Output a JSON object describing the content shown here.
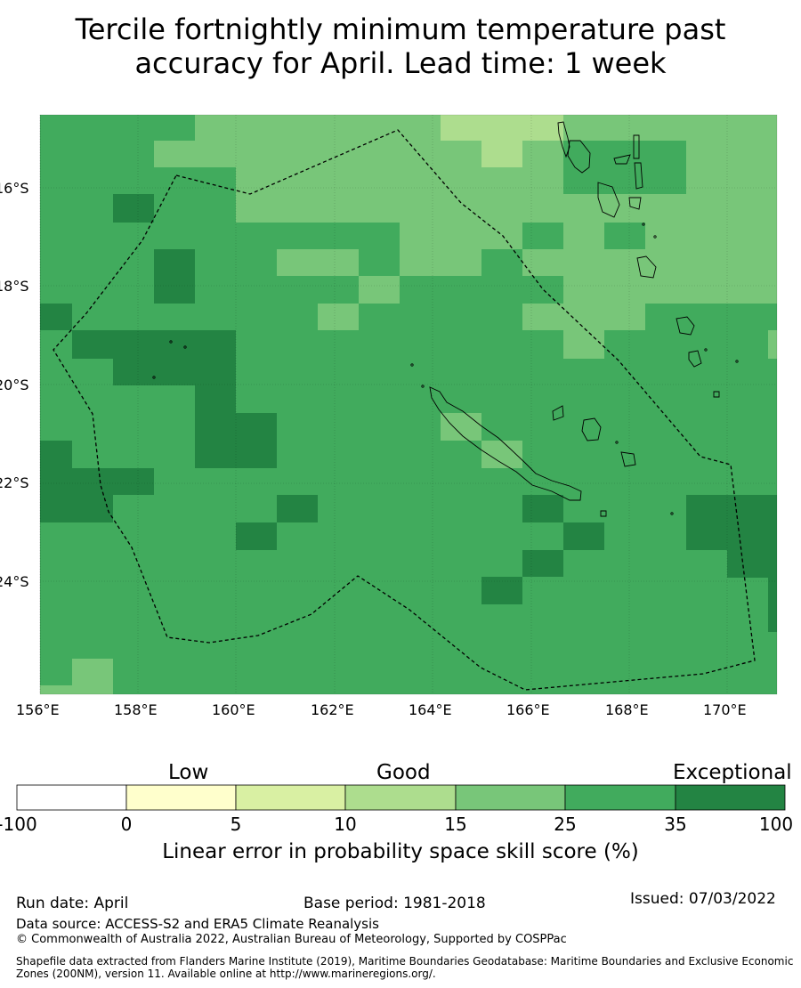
{
  "title_line1": "Tercile fortnightly minimum temperature past",
  "title_line2": "accuracy for April. Lead time: 1 week",
  "lon_ticks": [
    "156°E",
    "158°E",
    "160°E",
    "162°E",
    "164°E",
    "166°E",
    "168°E",
    "170°E"
  ],
  "lat_ticks": [
    "16°S",
    "18°S",
    "20°S",
    "22°S",
    "24°S"
  ],
  "map_extent": {
    "lon": [
      156,
      171
    ],
    "lat": [
      -14.5,
      -26.3
    ]
  },
  "colors": {
    "c0": "#ffffff",
    "c1": "#ffffcc",
    "c2": "#d9f0a3",
    "c3": "#addd8e",
    "c4": "#78c679",
    "c5": "#41ab5d",
    "c6": "#238443"
  },
  "colorbar": {
    "words": {
      "low": "Low",
      "good": "Good",
      "exceptional": "Exceptional"
    },
    "ticks": [
      "-100",
      "0",
      "5",
      "10",
      "15",
      "25",
      "35",
      "100"
    ],
    "label": "Linear error in probability space skill score (%)"
  },
  "footer": {
    "run_date": "Run date: April",
    "base_period": "Base period: 1981-2018",
    "issued": "Issued: 07/03/2022",
    "data_source": "Data source: ACCESS-S2 and ERA5 Climate Reanalysis",
    "copyright": "© Commonwealth of Australia 2022, Australian Bureau of Meteorology, Supported by COSPPac",
    "shapefile_line1": "Shapefile data extracted from Flanders Marine Institute (2019), Maritime Boundaries Geodatabase: Maritime Boundaries and Exclusive Economic",
    "shapefile_line2": "Zones (200NM), version 11. Available online at http://www.marineregions.org/."
  }
}
